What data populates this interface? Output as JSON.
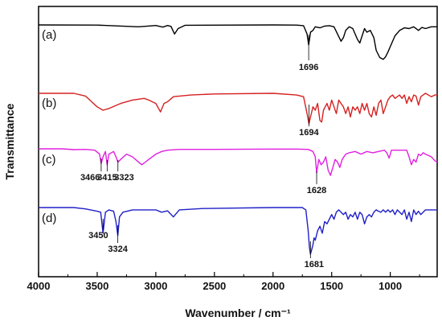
{
  "chart_data": {
    "type": "line",
    "title": "",
    "xlabel": "Wavenumber / cm⁻¹",
    "ylabel": "Transmittance",
    "xlim": [
      4000,
      600
    ],
    "x_reversed": true,
    "x_ticks": [
      4000,
      3500,
      3000,
      2500,
      2000,
      1500,
      1000
    ],
    "y_ticks": "none",
    "grid": false,
    "legend": "none",
    "series": [
      {
        "name": "(a)",
        "color": "#000000",
        "points": [
          [
            4000,
            0
          ],
          [
            3500,
            -0.005
          ],
          [
            3150,
            -0.05
          ],
          [
            3100,
            -0.04
          ],
          [
            3000,
            -0.015
          ],
          [
            2940,
            -0.06
          ],
          [
            2900,
            -0.015
          ],
          [
            2870,
            -0.04
          ],
          [
            2840,
            -0.25
          ],
          [
            2810,
            -0.1
          ],
          [
            2750,
            -0.01
          ],
          [
            2000,
            0
          ],
          [
            1800,
            -0.005
          ],
          [
            1740,
            -0.02
          ],
          [
            1710,
            -0.25
          ],
          [
            1696,
            -0.55
          ],
          [
            1680,
            -0.2
          ],
          [
            1660,
            -0.15
          ],
          [
            1640,
            -0.05
          ],
          [
            1600,
            -0.08
          ],
          [
            1560,
            -0.03
          ],
          [
            1520,
            -0.02
          ],
          [
            1480,
            -0.05
          ],
          [
            1450,
            -0.25
          ],
          [
            1420,
            -0.45
          ],
          [
            1400,
            -0.35
          ],
          [
            1380,
            -0.15
          ],
          [
            1350,
            -0.05
          ],
          [
            1320,
            -0.1
          ],
          [
            1280,
            -0.4
          ],
          [
            1260,
            -0.5
          ],
          [
            1240,
            -0.3
          ],
          [
            1220,
            -0.1
          ],
          [
            1200,
            -0.2
          ],
          [
            1170,
            -0.15
          ],
          [
            1140,
            -0.35
          ],
          [
            1120,
            -0.7
          ],
          [
            1090,
            -0.9
          ],
          [
            1060,
            -0.95
          ],
          [
            1040,
            -0.88
          ],
          [
            1020,
            -0.75
          ],
          [
            1000,
            -0.6
          ],
          [
            960,
            -0.3
          ],
          [
            920,
            -0.15
          ],
          [
            880,
            -0.08
          ],
          [
            840,
            -0.1
          ],
          [
            800,
            -0.05
          ],
          [
            760,
            -0.15
          ],
          [
            730,
            -0.07
          ],
          [
            700,
            -0.1
          ],
          [
            650,
            -0.05
          ],
          [
            600,
            -0.05
          ]
        ]
      },
      {
        "name": "(b)",
        "color": "#d62020",
        "points": [
          [
            4000,
            0
          ],
          [
            3700,
            0
          ],
          [
            3600,
            -0.08
          ],
          [
            3500,
            -0.4
          ],
          [
            3450,
            -0.5
          ],
          [
            3400,
            -0.45
          ],
          [
            3300,
            -0.3
          ],
          [
            3200,
            -0.2
          ],
          [
            3100,
            -0.15
          ],
          [
            3060,
            -0.2
          ],
          [
            3000,
            -0.3
          ],
          [
            2960,
            -0.55
          ],
          [
            2930,
            -0.3
          ],
          [
            2900,
            -0.25
          ],
          [
            2850,
            -0.1
          ],
          [
            2700,
            -0.05
          ],
          [
            2500,
            -0.02
          ],
          [
            2000,
            0
          ],
          [
            1800,
            -0.05
          ],
          [
            1740,
            -0.1
          ],
          [
            1710,
            -0.6
          ],
          [
            1694,
            -0.9
          ],
          [
            1680,
            -0.7
          ],
          [
            1660,
            -0.4
          ],
          [
            1640,
            -0.5
          ],
          [
            1620,
            -0.3
          ],
          [
            1600,
            -0.8
          ],
          [
            1585,
            -0.85
          ],
          [
            1570,
            -0.5
          ],
          [
            1540,
            -0.3
          ],
          [
            1520,
            -0.5
          ],
          [
            1500,
            -0.2
          ],
          [
            1480,
            -0.4
          ],
          [
            1460,
            -0.6
          ],
          [
            1440,
            -0.2
          ],
          [
            1420,
            -0.3
          ],
          [
            1400,
            -0.4
          ],
          [
            1380,
            -0.6
          ],
          [
            1360,
            -0.4
          ],
          [
            1340,
            -0.7
          ],
          [
            1320,
            -0.4
          ],
          [
            1300,
            -0.5
          ],
          [
            1280,
            -0.4
          ],
          [
            1260,
            -0.6
          ],
          [
            1240,
            -0.3
          ],
          [
            1220,
            -0.5
          ],
          [
            1200,
            -0.3
          ],
          [
            1180,
            -0.6
          ],
          [
            1160,
            -0.7
          ],
          [
            1140,
            -0.4
          ],
          [
            1120,
            -0.65
          ],
          [
            1100,
            -0.3
          ],
          [
            1080,
            -0.2
          ],
          [
            1060,
            -0.6
          ],
          [
            1040,
            -0.4
          ],
          [
            1020,
            -0.2
          ],
          [
            1000,
            -0.1
          ],
          [
            980,
            -0.05
          ],
          [
            960,
            -0.15
          ],
          [
            920,
            -0.05
          ],
          [
            900,
            -0.15
          ],
          [
            880,
            -0.05
          ],
          [
            860,
            -0.3
          ],
          [
            840,
            -0.1
          ],
          [
            820,
            -0.25
          ],
          [
            800,
            -0.05
          ],
          [
            780,
            -0.08
          ],
          [
            760,
            -0.35
          ],
          [
            740,
            -0.1
          ],
          [
            720,
            -0.05
          ],
          [
            700,
            0
          ],
          [
            650,
            -0.1
          ],
          [
            620,
            -0.05
          ],
          [
            600,
            -0.05
          ]
        ]
      },
      {
        "name": "(c)",
        "color": "#e020e0",
        "points": [
          [
            4000,
            0
          ],
          [
            3800,
            0
          ],
          [
            3700,
            -0.03
          ],
          [
            3600,
            -0.02
          ],
          [
            3520,
            -0.05
          ],
          [
            3480,
            -0.2
          ],
          [
            3466,
            -0.55
          ],
          [
            3450,
            -0.3
          ],
          [
            3430,
            -0.1
          ],
          [
            3415,
            -0.6
          ],
          [
            3400,
            -0.2
          ],
          [
            3360,
            -0.1
          ],
          [
            3340,
            -0.3
          ],
          [
            3323,
            -0.5
          ],
          [
            3300,
            -0.4
          ],
          [
            3250,
            -0.2
          ],
          [
            3200,
            -0.3
          ],
          [
            3160,
            -0.45
          ],
          [
            3120,
            -0.6
          ],
          [
            3090,
            -0.5
          ],
          [
            3060,
            -0.4
          ],
          [
            3030,
            -0.3
          ],
          [
            3000,
            -0.2
          ],
          [
            2950,
            -0.1
          ],
          [
            2900,
            -0.05
          ],
          [
            2800,
            -0.02
          ],
          [
            2500,
            -0.02
          ],
          [
            2000,
            -0.01
          ],
          [
            1800,
            -0.01
          ],
          [
            1700,
            -0.02
          ],
          [
            1660,
            -0.1
          ],
          [
            1640,
            -0.3
          ],
          [
            1628,
            -0.9
          ],
          [
            1610,
            -0.4
          ],
          [
            1590,
            -0.6
          ],
          [
            1570,
            -0.5
          ],
          [
            1550,
            -0.3
          ],
          [
            1530,
            -0.8
          ],
          [
            1510,
            -1.0
          ],
          [
            1490,
            -0.7
          ],
          [
            1470,
            -0.4
          ],
          [
            1450,
            -0.5
          ],
          [
            1430,
            -0.7
          ],
          [
            1410,
            -0.4
          ],
          [
            1380,
            -0.2
          ],
          [
            1350,
            -0.15
          ],
          [
            1300,
            -0.1
          ],
          [
            1250,
            -0.2
          ],
          [
            1200,
            -0.1
          ],
          [
            1150,
            -0.15
          ],
          [
            1100,
            -0.1
          ],
          [
            1050,
            -0.05
          ],
          [
            1030,
            -0.15
          ],
          [
            1010,
            -0.35
          ],
          [
            990,
            -0.05
          ],
          [
            950,
            -0.05
          ],
          [
            900,
            -0.05
          ],
          [
            860,
            -0.05
          ],
          [
            840,
            -0.3
          ],
          [
            820,
            -0.6
          ],
          [
            800,
            -0.4
          ],
          [
            780,
            -0.5
          ],
          [
            760,
            -0.2
          ],
          [
            740,
            -0.25
          ],
          [
            720,
            -0.15
          ],
          [
            700,
            -0.2
          ],
          [
            650,
            -0.3
          ],
          [
            620,
            -0.45
          ],
          [
            600,
            -0.5
          ]
        ]
      },
      {
        "name": "(d)",
        "color": "#2020c8",
        "points": [
          [
            4000,
            0
          ],
          [
            3700,
            0
          ],
          [
            3600,
            -0.03
          ],
          [
            3500,
            -0.08
          ],
          [
            3470,
            -0.1
          ],
          [
            3450,
            -0.55
          ],
          [
            3430,
            -0.1
          ],
          [
            3400,
            -0.05
          ],
          [
            3360,
            -0.08
          ],
          [
            3340,
            -0.3
          ],
          [
            3324,
            -0.6
          ],
          [
            3310,
            -0.2
          ],
          [
            3280,
            -0.1
          ],
          [
            3200,
            -0.05
          ],
          [
            3100,
            -0.05
          ],
          [
            3000,
            -0.05
          ],
          [
            2950,
            -0.1
          ],
          [
            2900,
            -0.07
          ],
          [
            2850,
            -0.2
          ],
          [
            2800,
            -0.05
          ],
          [
            2600,
            -0.02
          ],
          [
            2000,
            0
          ],
          [
            1750,
            0
          ],
          [
            1720,
            -0.05
          ],
          [
            1700,
            -0.5
          ],
          [
            1690,
            -0.85
          ],
          [
            1681,
            -1.0
          ],
          [
            1670,
            -0.9
          ],
          [
            1660,
            -0.8
          ],
          [
            1650,
            -0.65
          ],
          [
            1640,
            -0.7
          ],
          [
            1620,
            -0.5
          ],
          [
            1600,
            -0.4
          ],
          [
            1580,
            -0.55
          ],
          [
            1560,
            -0.3
          ],
          [
            1540,
            -0.35
          ],
          [
            1520,
            -0.25
          ],
          [
            1500,
            -0.15
          ],
          [
            1480,
            -0.25
          ],
          [
            1460,
            -0.1
          ],
          [
            1440,
            -0.05
          ],
          [
            1420,
            -0.1
          ],
          [
            1400,
            -0.15
          ],
          [
            1380,
            -0.1
          ],
          [
            1360,
            -0.25
          ],
          [
            1340,
            -0.15
          ],
          [
            1320,
            -0.2
          ],
          [
            1300,
            -0.1
          ],
          [
            1280,
            -0.25
          ],
          [
            1260,
            -0.1
          ],
          [
            1240,
            -0.15
          ],
          [
            1220,
            -0.35
          ],
          [
            1200,
            -0.2
          ],
          [
            1180,
            -0.15
          ],
          [
            1160,
            -0.2
          ],
          [
            1140,
            -0.1
          ],
          [
            1120,
            -0.05
          ],
          [
            1100,
            -0.08
          ],
          [
            1080,
            -0.1
          ],
          [
            1060,
            -0.05
          ],
          [
            1040,
            -0.1
          ],
          [
            1020,
            -0.05
          ],
          [
            1000,
            -0.1
          ],
          [
            980,
            -0.05
          ],
          [
            960,
            -0.15
          ],
          [
            940,
            -0.05
          ],
          [
            920,
            -0.1
          ],
          [
            900,
            -0.15
          ],
          [
            880,
            -0.05
          ],
          [
            860,
            -0.25
          ],
          [
            840,
            -0.1
          ],
          [
            820,
            -0.3
          ],
          [
            800,
            -0.05
          ],
          [
            780,
            -0.15
          ],
          [
            760,
            -0.08
          ],
          [
            740,
            -0.15
          ],
          [
            700,
            -0.05
          ],
          [
            650,
            -0.05
          ],
          [
            600,
            -0.05
          ]
        ]
      }
    ],
    "annotations": [
      {
        "series": 0,
        "x": 1696,
        "text": "1696"
      },
      {
        "series": 1,
        "x": 1694,
        "text": "1694"
      },
      {
        "series": 2,
        "x": 3466,
        "text": "3466"
      },
      {
        "series": 2,
        "x": 3415,
        "text": "3415"
      },
      {
        "series": 2,
        "x": 3323,
        "text": "3323"
      },
      {
        "series": 2,
        "x": 1628,
        "text": "1628"
      },
      {
        "series": 3,
        "x": 3450,
        "text": "3450"
      },
      {
        "series": 3,
        "x": 3324,
        "text": "3324"
      },
      {
        "series": 3,
        "x": 1681,
        "text": "1681"
      }
    ]
  }
}
